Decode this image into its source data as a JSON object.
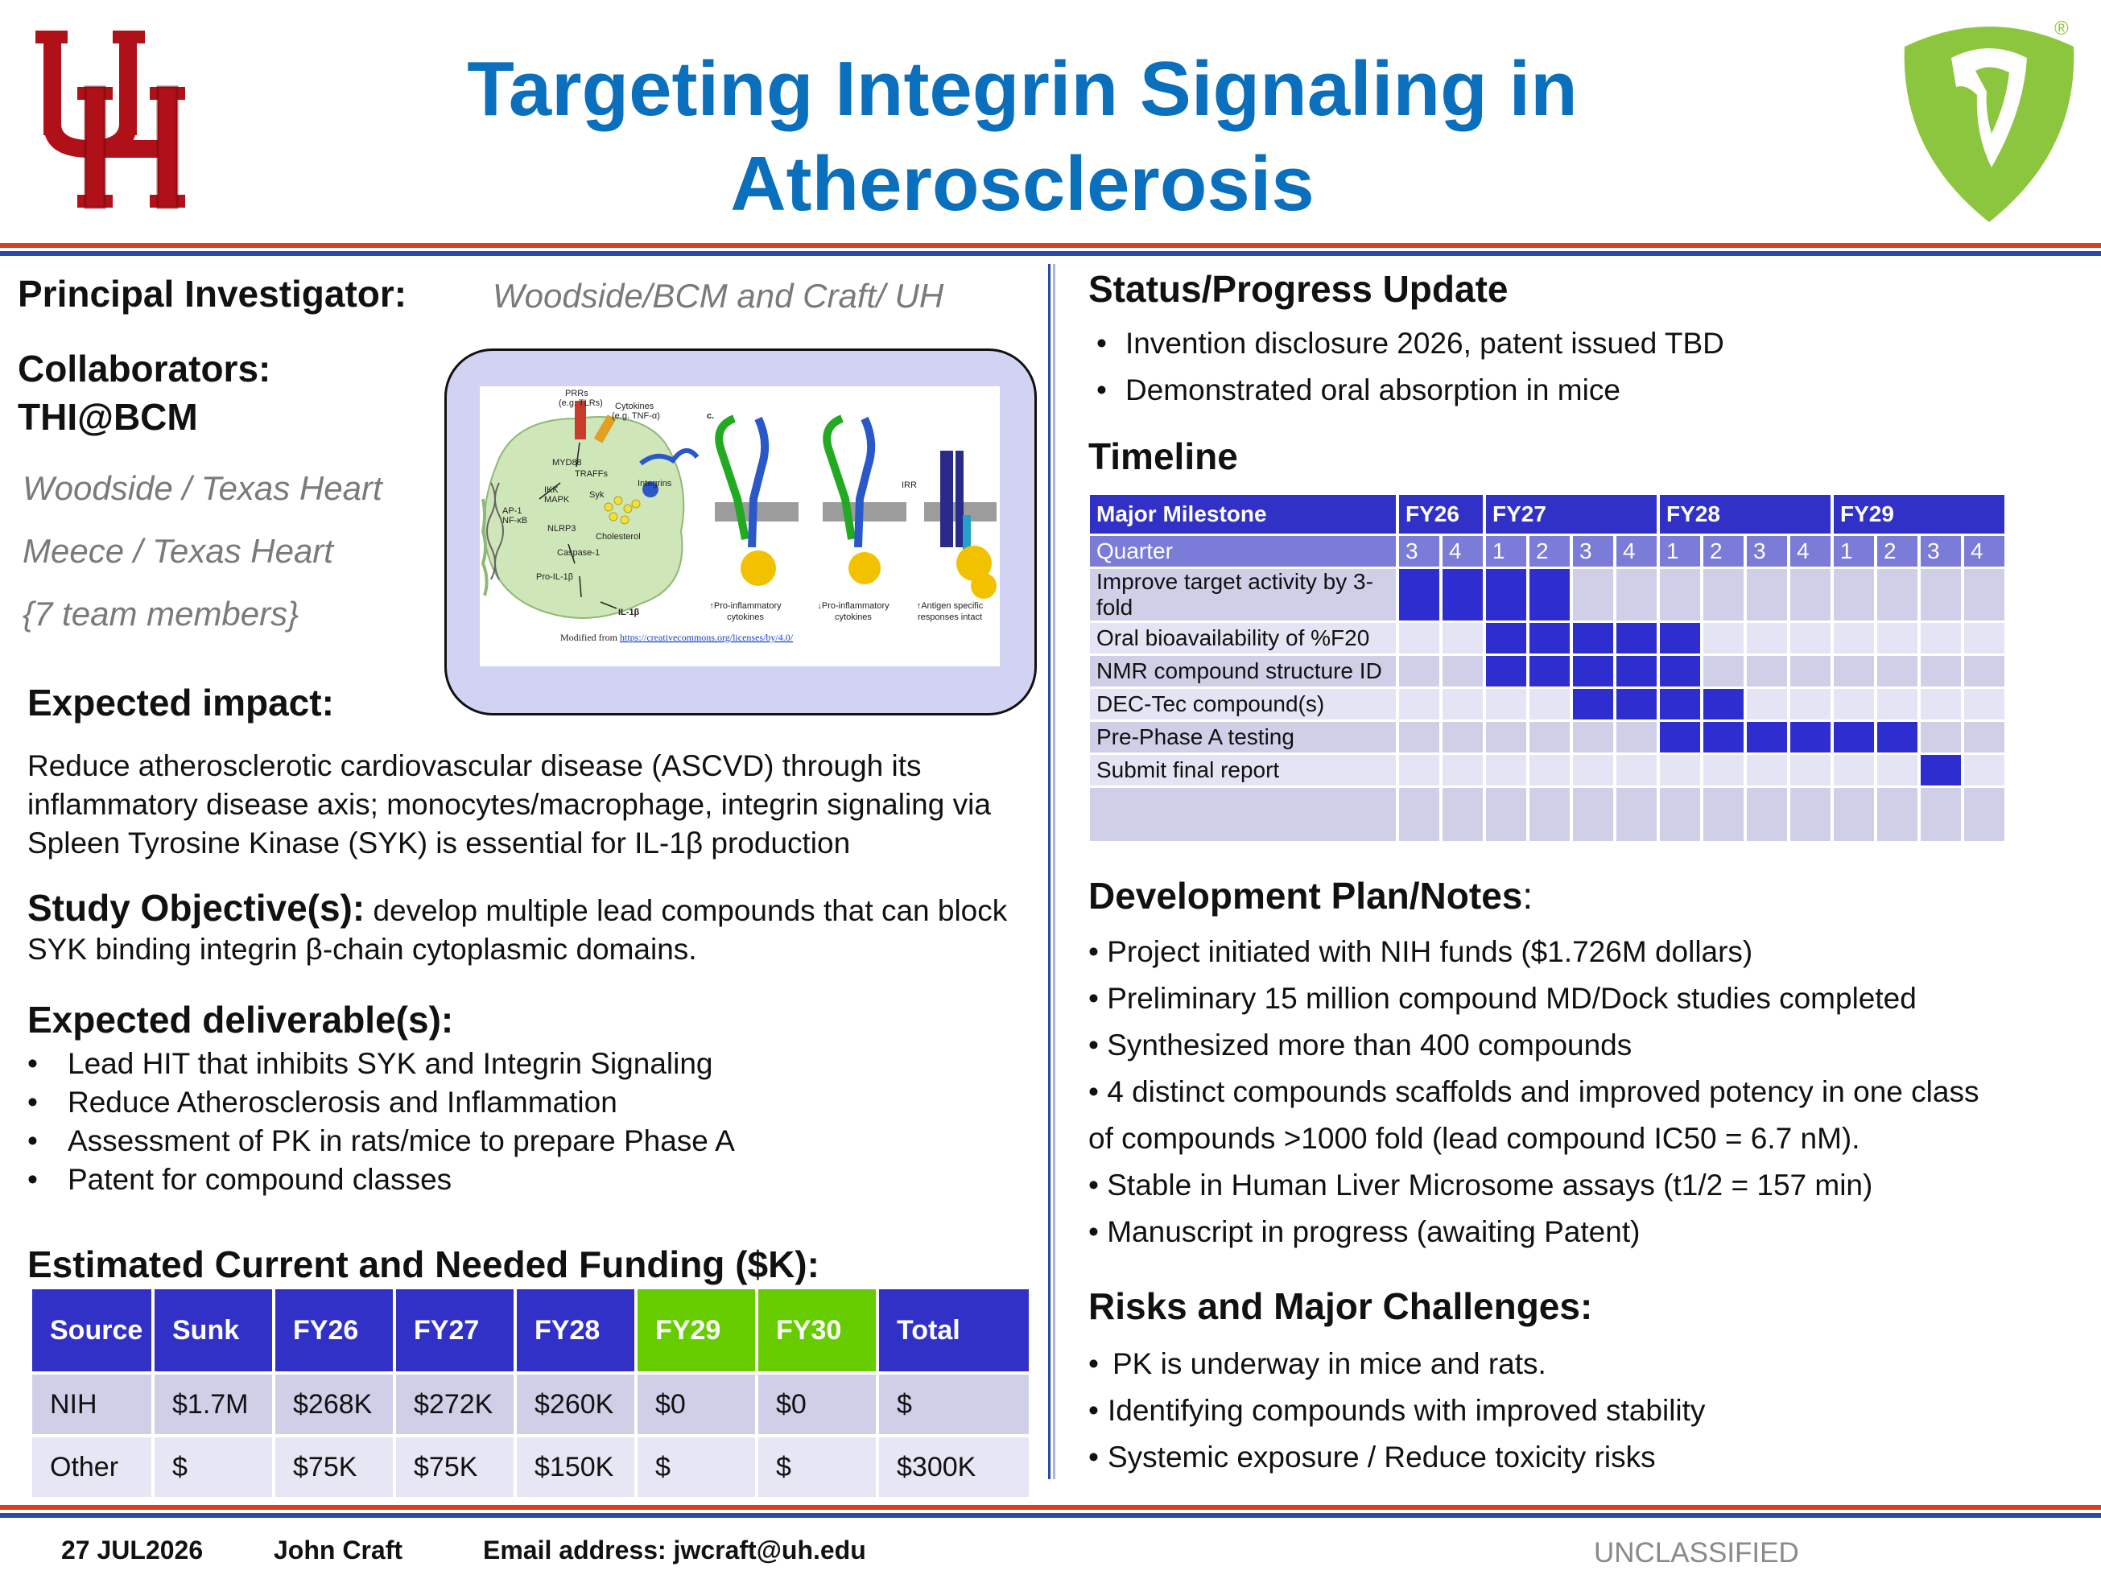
{
  "header": {
    "title_line1": "Targeting Integrin Signaling in",
    "title_line2": "Atherosclerosis",
    "left_logo_icon": "uh-logo-icon",
    "right_logo_icon": "tooth-shield-logo-icon",
    "registered_mark": "®"
  },
  "left": {
    "pi_label": "Principal Investigator:",
    "pi_value": "Woodside/BCM and Craft/ UH",
    "collab_label_line1": "Collaborators:",
    "collab_label_line2": "THI@BCM",
    "collaborators": [
      "Woodside / Texas Heart",
      "Meece / Texas Heart",
      "{7 team members}"
    ],
    "figure": {
      "labels": {
        "prrs": "PRRs",
        "prrs_sub": "(e.g. TLRs)",
        "cytokines": "Cytokines",
        "cytokines_sub": "(e.g. TNF-α)",
        "panel_c": "c.",
        "myd88": "MYD88",
        "traffs": "TRAFFs",
        "ikk": "IKK",
        "mapk": "MAPK",
        "syk": "Syk",
        "integrins": "Integrins",
        "ap1": "AP-1",
        "nfkb": "NF-κB",
        "nlrp3": "NLRP3",
        "cholesterol": "Cholesterol",
        "caspase": "Caspase-1",
        "proil": "Pro-IL-1β",
        "il1b": "IL-1β",
        "irr": "IRR",
        "cap1a": "↑Pro-inflammatory",
        "cap1b": "cytokines",
        "cap2a": "↓Pro-inflammatory",
        "cap2b": "cytokines",
        "cap3a": "↑Antigen specific",
        "cap3b": "responses intact",
        "credit_prefix": "Modified from ",
        "credit_link": "https://creativecommons.org/licenses/by/4.0/"
      }
    },
    "impact_label": "Expected impact:",
    "impact_text": "Reduce atherosclerotic cardiovascular disease (ASCVD) through its inflammatory disease axis; monocytes/macrophage, integrin signaling via Spleen Tyrosine Kinase (SYK) is essential for IL-1β production",
    "objective_label": "Study Objective(s):",
    "objective_text": " develop multiple lead compounds that can block SYK binding integrin β-chain cytoplasmic domains.",
    "deliverables_label": "Expected deliverable(s):",
    "deliverables": [
      "Lead HIT that inhibits SYK and Integrin Signaling",
      "Reduce Atherosclerosis and Inflammation",
      "Assessment of PK in rats/mice to prepare Phase A",
      "Patent for compound classes"
    ],
    "funding_label": "Estimated Current and Needed Funding ($K):",
    "funding": {
      "headers": [
        "Source",
        "Sunk",
        "FY26",
        "FY27",
        "FY28",
        "FY29",
        "FY30",
        "Total"
      ],
      "rows": [
        [
          "NIH",
          "$1.7M",
          "$268K",
          "$272K",
          "$260K",
          "$0",
          "$0",
          "$"
        ],
        [
          "Other",
          "$",
          "$75K",
          "$75K",
          "$150K",
          "$",
          "$",
          "$300K"
        ]
      ],
      "header_color": "#3131c8",
      "highlight_color": "#66cc00"
    }
  },
  "right": {
    "status_label": "Status/Progress Update",
    "status_items": [
      "Invention disclosure 2026, patent issued TBD",
      "Demonstrated oral absorption in mice"
    ],
    "timeline_label": "Timeline",
    "timeline": {
      "milestone_header": "Major Milestone",
      "years": [
        "FY26",
        "FY27",
        "FY28",
        "FY29"
      ],
      "quarter_label": "Quarter",
      "quarters": [
        "3",
        "4",
        "1",
        "2",
        "3",
        "4",
        "1",
        "2",
        "3",
        "4",
        "1",
        "2",
        "3",
        "4"
      ],
      "milestones": [
        {
          "label": "Improve target activity by 3-fold",
          "active": [
            1,
            1,
            1,
            1,
            0,
            0,
            0,
            0,
            0,
            0,
            0,
            0,
            0,
            0
          ]
        },
        {
          "label": "Oral bioavailability of %F20",
          "active": [
            0,
            0,
            1,
            1,
            1,
            1,
            1,
            0,
            0,
            0,
            0,
            0,
            0,
            0
          ]
        },
        {
          "label": "NMR compound structure ID",
          "active": [
            0,
            0,
            1,
            1,
            1,
            1,
            1,
            0,
            0,
            0,
            0,
            0,
            0,
            0
          ]
        },
        {
          "label": "DEC-Tec compound(s)",
          "active": [
            0,
            0,
            0,
            0,
            1,
            1,
            1,
            1,
            0,
            0,
            0,
            0,
            0,
            0
          ]
        },
        {
          "label": "Pre-Phase A testing",
          "active": [
            0,
            0,
            0,
            0,
            0,
            0,
            1,
            1,
            1,
            1,
            1,
            1,
            0,
            0
          ]
        },
        {
          "label": "Submit final report",
          "active": [
            0,
            0,
            0,
            0,
            0,
            0,
            0,
            0,
            0,
            0,
            0,
            0,
            1,
            0
          ]
        },
        {
          "label": "",
          "active": [
            0,
            0,
            0,
            0,
            0,
            0,
            0,
            0,
            0,
            0,
            0,
            0,
            0,
            0
          ]
        }
      ],
      "active_color": "#2d2dd0"
    },
    "dev_label": "Development Plan/Notes",
    "dev_colon": ":",
    "dev_items": [
      "• Project initiated with NIH funds ($1.726M dollars)",
      "• Preliminary 15 million compound MD/Dock studies completed",
      "• Synthesized more than 400 compounds",
      "• 4 distinct compounds scaffolds and improved potency in one class",
      "of compounds >1000 fold (lead compound IC50 = 6.7 nM).",
      "• Stable in Human Liver Microsome assays (t1/2 = 157 min)",
      "• Manuscript in progress (awaiting Patent)"
    ],
    "risks_label": "Risks and Major Challenges:",
    "risk_items": [
      "PK is underway in mice and rats.",
      "Identifying compounds with improved stability",
      "Systemic exposure / Reduce toxicity risks"
    ]
  },
  "footer": {
    "date": "27 JUL2026",
    "name": "John Craft",
    "email": "Email address: jwcraft@uh.edu",
    "classification": "UNCLASSIFIED"
  }
}
